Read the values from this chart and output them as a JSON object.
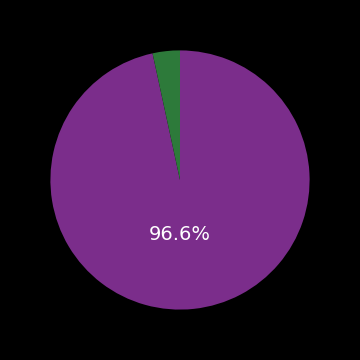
{
  "slices": [
    96.6,
    3.4
  ],
  "colors": [
    "#7b2d8b",
    "#2d7a3a"
  ],
  "label_text": "96.6%",
  "label_color": "#ffffff",
  "label_fontsize": 14,
  "background_color": "#000000",
  "startangle": 90,
  "figsize": [
    3.6,
    3.6
  ],
  "dpi": 100
}
